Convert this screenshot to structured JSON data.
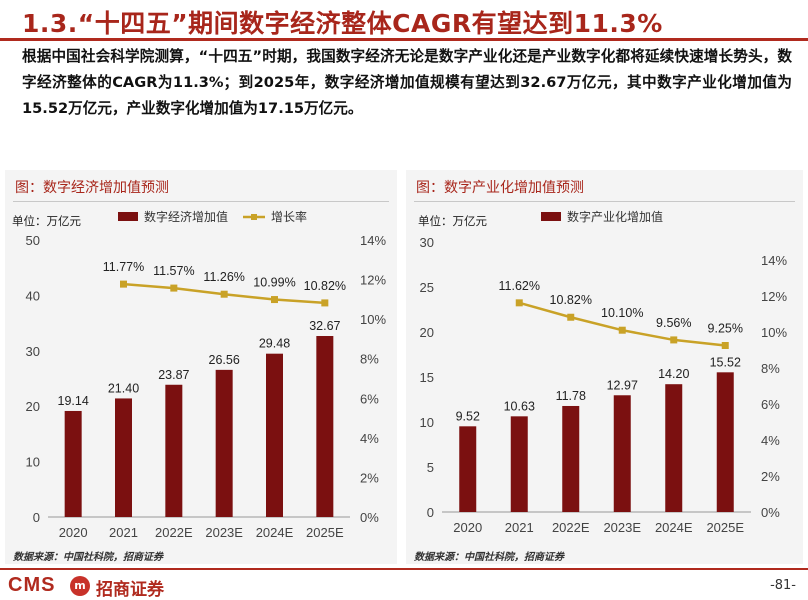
{
  "header": {
    "title": "1.3.“十四五”期间数字经济整体CAGR有望达到11.3%",
    "intro": "根据中国社会科学院测算，“十四五”时期，我国数字经济无论是数字产业化还是产业数字化都将延续快速增长势头，数字经济整体的CAGR为11.3%；到2025年，数字经济增加值规模有望达到32.67万亿元，其中数字产业化增加值为15.52万亿元，产业数字化增加值为17.15万亿元。"
  },
  "chart_data": [
    {
      "type": "bar+line",
      "title": "图：数字经济增加值预测",
      "unit_label": "单位：万亿元",
      "categories": [
        "2020",
        "2021",
        "2022E",
        "2023E",
        "2024E",
        "2025E"
      ],
      "series": [
        {
          "name": "数字经济增加值",
          "type": "bar",
          "axis": "left",
          "color": "#7b1010",
          "values": [
            19.14,
            21.4,
            23.87,
            26.56,
            29.48,
            32.67
          ],
          "labels": [
            "19.14",
            "21.40",
            "23.87",
            "26.56",
            "29.48",
            "32.67"
          ]
        },
        {
          "name": "增长率",
          "type": "line",
          "axis": "right",
          "color": "#c9a227",
          "values": [
            null,
            11.77,
            11.57,
            11.26,
            10.99,
            10.82
          ],
          "labels": [
            "",
            "11.77%",
            "11.57%",
            "11.26%",
            "10.99%",
            "10.82%"
          ]
        }
      ],
      "ylim_left": [
        0,
        50
      ],
      "yticks_left": [
        "0",
        "10",
        "20",
        "30",
        "40",
        "50"
      ],
      "ylim_right": [
        0,
        14
      ],
      "yticks_right": [
        "0%",
        "2%",
        "4%",
        "6%",
        "8%",
        "10%",
        "12%",
        "14%"
      ],
      "source": "数据来源：中国社科院，招商证券"
    },
    {
      "type": "bar+line",
      "title": "图：数字产业化增加值预测",
      "unit_label": "单位：万亿元",
      "categories": [
        "2020",
        "2021",
        "2022E",
        "2023E",
        "2024E",
        "2025E"
      ],
      "series": [
        {
          "name": "数字产业化增加值",
          "type": "bar",
          "axis": "left",
          "color": "#7b1010",
          "values": [
            9.52,
            10.63,
            11.78,
            12.97,
            14.2,
            15.52
          ],
          "labels": [
            "9.52",
            "10.63",
            "11.78",
            "12.97",
            "14.20",
            "15.52"
          ]
        },
        {
          "name": "",
          "type": "line",
          "axis": "right",
          "color": "#c9a227",
          "values": [
            null,
            11.62,
            10.82,
            10.1,
            9.56,
            9.25
          ],
          "labels": [
            "",
            "11.62%",
            "10.82%",
            "10.10%",
            "9.56%",
            "9.25%"
          ]
        }
      ],
      "ylim_left": [
        0,
        30
      ],
      "yticks_left": [
        "0",
        "5",
        "10",
        "15",
        "20",
        "25",
        "30"
      ],
      "ylim_right": [
        0,
        15
      ],
      "yticks_right": [
        "0%",
        "2%",
        "4%",
        "6%",
        "8%",
        "10%",
        "12%",
        "14%"
      ],
      "source": "数据来源：中国社科院，招商证券"
    }
  ],
  "footer": {
    "logo_text": "CMS",
    "logo_mark": "m",
    "logo_cn": "招商证券",
    "page_number": "-81-"
  },
  "colors": {
    "brand_red": "#b02a1e",
    "bar": "#7b1010",
    "line": "#c9a227"
  }
}
